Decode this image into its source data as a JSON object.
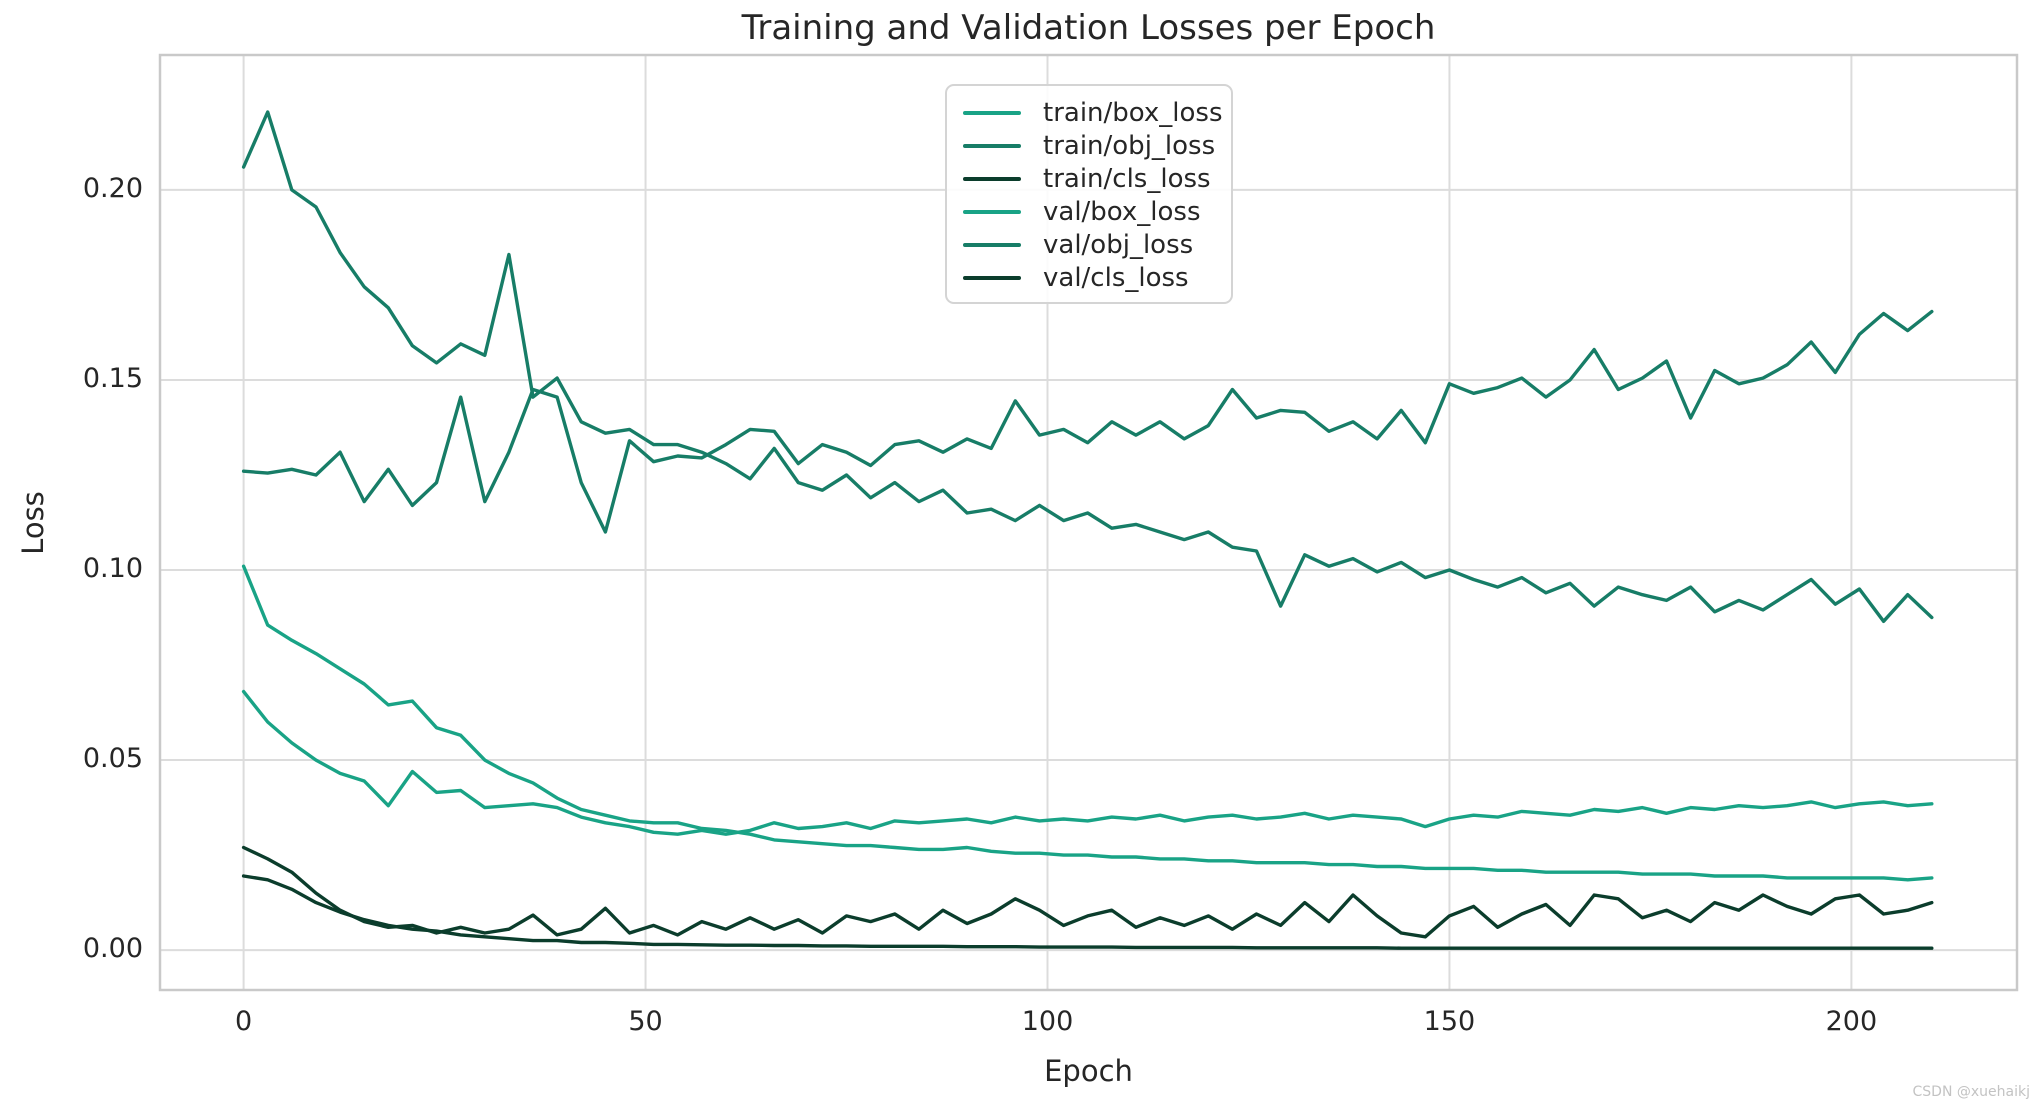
{
  "watermark": "CSDN @xuehaikj",
  "chart_data": {
    "type": "line",
    "title": "Training and Validation Losses per Epoch",
    "xlabel": "Epoch",
    "ylabel": "Loss",
    "xlim": [
      -10.4,
      220.6
    ],
    "ylim": [
      -0.0105,
      0.2355
    ],
    "grid": true,
    "legend_position": "upper center",
    "xticks": {
      "values": [
        0,
        50,
        100,
        150,
        200
      ],
      "labels": [
        "0",
        "50",
        "100",
        "150",
        "200"
      ]
    },
    "yticks": {
      "values": [
        0.0,
        0.05,
        0.1,
        0.15,
        0.2
      ],
      "labels": [
        "0.00",
        "0.05",
        "0.10",
        "0.15",
        "0.20"
      ]
    },
    "x_start": 0,
    "x_step": 3,
    "series": [
      {
        "name": "train/box_loss",
        "color": "#19a386",
        "values": [
          0.101,
          0.0855,
          0.0815,
          0.078,
          0.074,
          0.07,
          0.0645,
          0.0655,
          0.0585,
          0.0565,
          0.05,
          0.0465,
          0.044,
          0.04,
          0.037,
          0.0355,
          0.034,
          0.0335,
          0.0335,
          0.032,
          0.0315,
          0.0305,
          0.029,
          0.0285,
          0.028,
          0.0275,
          0.0275,
          0.027,
          0.0265,
          0.0265,
          0.027,
          0.026,
          0.0255,
          0.0255,
          0.025,
          0.025,
          0.0245,
          0.0245,
          0.024,
          0.024,
          0.0235,
          0.0235,
          0.023,
          0.023,
          0.023,
          0.0225,
          0.0225,
          0.022,
          0.022,
          0.0215,
          0.0215,
          0.0215,
          0.021,
          0.021,
          0.0205,
          0.0205,
          0.0205,
          0.0205,
          0.02,
          0.02,
          0.02,
          0.0195,
          0.0195,
          0.0195,
          0.019,
          0.019,
          0.019,
          0.019,
          0.019,
          0.0185,
          0.019
        ]
      },
      {
        "name": "train/obj_loss",
        "color": "#177d67",
        "values": [
          0.206,
          0.2205,
          0.2,
          0.1955,
          0.1835,
          0.1745,
          0.169,
          0.159,
          0.1545,
          0.1595,
          0.1565,
          0.183,
          0.1455,
          0.1505,
          0.139,
          0.136,
          0.137,
          0.133,
          0.133,
          0.131,
          0.128,
          0.124,
          0.132,
          0.123,
          0.121,
          0.125,
          0.119,
          0.123,
          0.118,
          0.121,
          0.115,
          0.116,
          0.113,
          0.117,
          0.113,
          0.115,
          0.111,
          0.112,
          0.11,
          0.108,
          0.11,
          0.106,
          0.105,
          0.0905,
          0.104,
          0.101,
          0.103,
          0.0995,
          0.102,
          0.098,
          0.1,
          0.0975,
          0.0955,
          0.098,
          0.094,
          0.0965,
          0.0905,
          0.0955,
          0.0935,
          0.092,
          0.0955,
          0.089,
          0.092,
          0.0895,
          0.0935,
          0.0975,
          0.091,
          0.095,
          0.0865,
          0.0935,
          0.0875
        ]
      },
      {
        "name": "train/cls_loss",
        "color": "#0b3d2c",
        "values": [
          0.0195,
          0.0185,
          0.016,
          0.0125,
          0.01,
          0.008,
          0.0065,
          0.0055,
          0.005,
          0.004,
          0.0035,
          0.003,
          0.0025,
          0.0025,
          0.002,
          0.002,
          0.0018,
          0.0015,
          0.0015,
          0.0014,
          0.0013,
          0.0013,
          0.0012,
          0.0012,
          0.0011,
          0.0011,
          0.001,
          0.001,
          0.001,
          0.001,
          0.0009,
          0.0009,
          0.0009,
          0.0008,
          0.0008,
          0.0008,
          0.0008,
          0.0007,
          0.0007,
          0.0007,
          0.0007,
          0.0007,
          0.0006,
          0.0006,
          0.0006,
          0.0006,
          0.0006,
          0.0006,
          0.0005,
          0.0005,
          0.0005,
          0.0005,
          0.0005,
          0.0005,
          0.0005,
          0.0005,
          0.0005,
          0.0005,
          0.0005,
          0.0005,
          0.0005,
          0.0005,
          0.0005,
          0.0005,
          0.0005,
          0.0005,
          0.0005,
          0.0005,
          0.0005,
          0.0005,
          0.0005
        ]
      },
      {
        "name": "val/box_loss",
        "color": "#19a386",
        "values": [
          0.068,
          0.06,
          0.0545,
          0.05,
          0.0465,
          0.0445,
          0.038,
          0.047,
          0.0415,
          0.042,
          0.0375,
          0.038,
          0.0385,
          0.0375,
          0.035,
          0.0335,
          0.0325,
          0.031,
          0.0305,
          0.0315,
          0.0305,
          0.0315,
          0.0335,
          0.032,
          0.0325,
          0.0335,
          0.032,
          0.034,
          0.0335,
          0.034,
          0.0345,
          0.0335,
          0.035,
          0.034,
          0.0345,
          0.034,
          0.035,
          0.0345,
          0.0355,
          0.034,
          0.035,
          0.0355,
          0.0345,
          0.035,
          0.036,
          0.0345,
          0.0355,
          0.035,
          0.0345,
          0.0325,
          0.0345,
          0.0355,
          0.035,
          0.0365,
          0.036,
          0.0355,
          0.037,
          0.0365,
          0.0375,
          0.036,
          0.0375,
          0.037,
          0.038,
          0.0375,
          0.038,
          0.039,
          0.0375,
          0.0385,
          0.039,
          0.038,
          0.0385
        ]
      },
      {
        "name": "val/obj_loss",
        "color": "#177d67",
        "values": [
          0.126,
          0.1255,
          0.1265,
          0.125,
          0.131,
          0.118,
          0.1265,
          0.117,
          0.123,
          0.1455,
          0.118,
          0.131,
          0.1475,
          0.1455,
          0.123,
          0.11,
          0.134,
          0.1285,
          0.13,
          0.1295,
          0.133,
          0.137,
          0.1365,
          0.128,
          0.133,
          0.131,
          0.1275,
          0.133,
          0.134,
          0.131,
          0.1345,
          0.132,
          0.1445,
          0.1355,
          0.137,
          0.1335,
          0.139,
          0.1355,
          0.139,
          0.1345,
          0.138,
          0.1475,
          0.14,
          0.142,
          0.1415,
          0.1365,
          0.139,
          0.1345,
          0.142,
          0.1335,
          0.149,
          0.1465,
          0.148,
          0.1505,
          0.1455,
          0.15,
          0.158,
          0.1475,
          0.1505,
          0.155,
          0.14,
          0.1525,
          0.149,
          0.1505,
          0.154,
          0.16,
          0.152,
          0.162,
          0.1675,
          0.163,
          0.168
        ]
      },
      {
        "name": "val/cls_loss",
        "color": "#0b3d2c",
        "values": [
          0.027,
          0.024,
          0.0205,
          0.015,
          0.0105,
          0.0075,
          0.006,
          0.0065,
          0.0045,
          0.006,
          0.0045,
          0.0055,
          0.0092,
          0.004,
          0.0055,
          0.011,
          0.0045,
          0.0065,
          0.004,
          0.0075,
          0.0055,
          0.0085,
          0.0055,
          0.008,
          0.0045,
          0.009,
          0.0075,
          0.0095,
          0.0055,
          0.0105,
          0.007,
          0.0095,
          0.0135,
          0.0105,
          0.0065,
          0.009,
          0.0105,
          0.006,
          0.0085,
          0.0065,
          0.009,
          0.0055,
          0.0095,
          0.0065,
          0.0125,
          0.0075,
          0.0145,
          0.009,
          0.0045,
          0.0035,
          0.009,
          0.0115,
          0.006,
          0.0095,
          0.012,
          0.0065,
          0.0145,
          0.0135,
          0.0085,
          0.0105,
          0.0075,
          0.0125,
          0.0105,
          0.0145,
          0.0115,
          0.0095,
          0.0135,
          0.0145,
          0.0095,
          0.0105,
          0.0125
        ]
      }
    ]
  }
}
